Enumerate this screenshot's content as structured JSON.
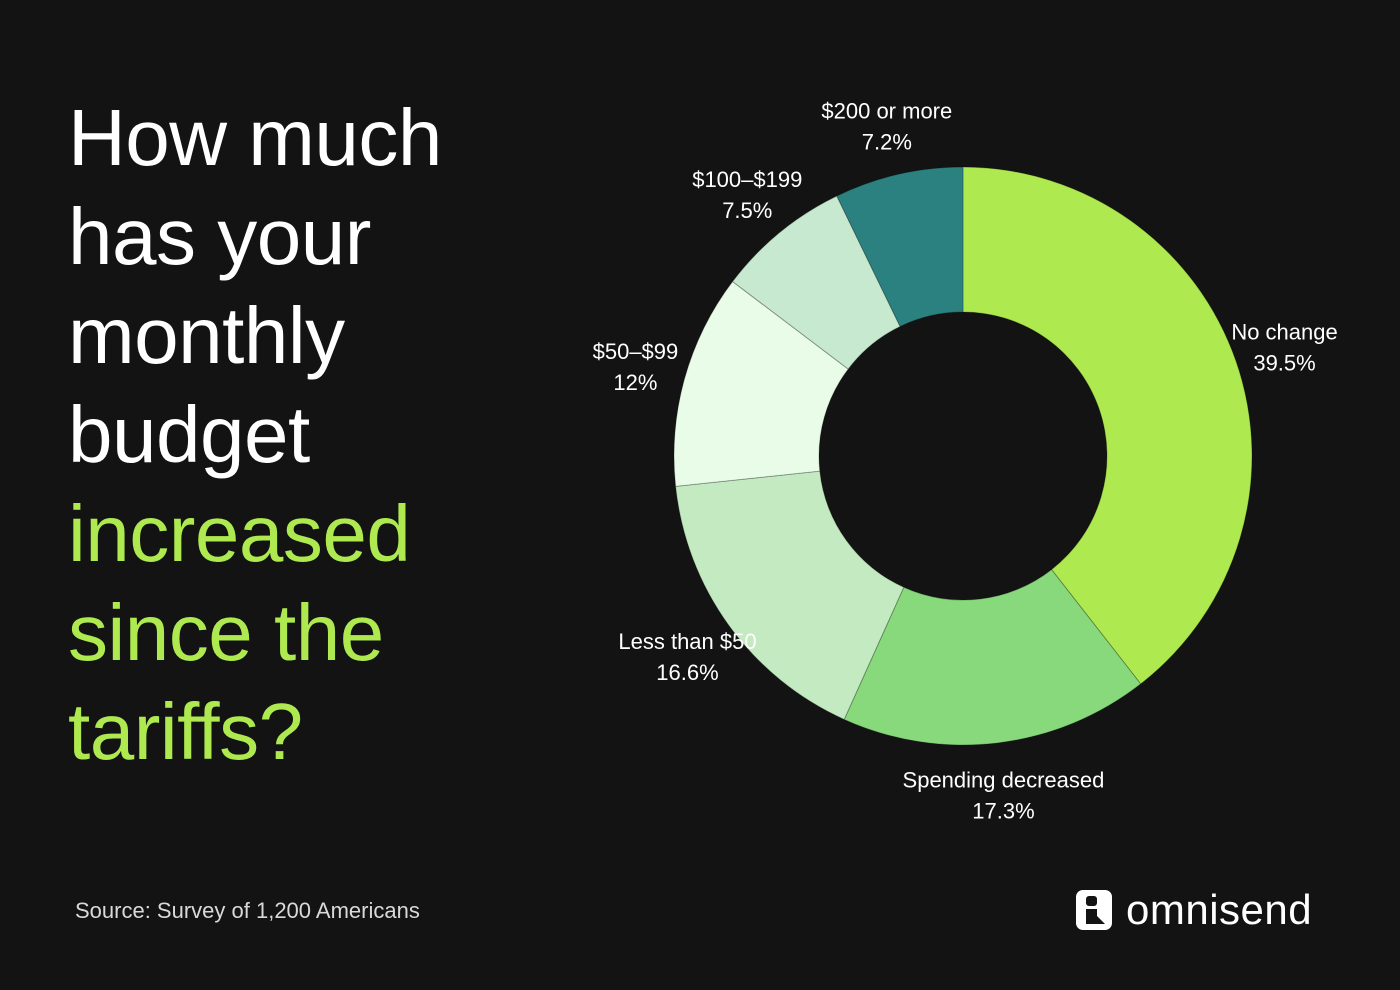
{
  "headline": {
    "lines": [
      "How much",
      "has your",
      "monthly",
      "budget"
    ],
    "accent_lines": [
      "increased",
      "since the",
      "tariffs?"
    ]
  },
  "footer": {
    "source": "Source: Survey of 1,200 Americans",
    "brand": "omnisend"
  },
  "chart_data": {
    "type": "pie",
    "donut": true,
    "unit": "%",
    "categories": [
      "No change",
      "Spending decreased",
      "Less than $50",
      "$50–$99",
      "$100–$199",
      "$200 or more"
    ],
    "values": [
      39.5,
      17.3,
      16.6,
      12,
      7.5,
      7.2
    ],
    "value_labels": [
      "39.5%",
      "17.3%",
      "16.6%",
      "12%",
      "7.5%",
      "7.2%"
    ],
    "colors": [
      "#aeea4f",
      "#88d97c",
      "#c3eac0",
      "#e8fce8",
      "#c6e9cf",
      "#2b8080"
    ]
  }
}
